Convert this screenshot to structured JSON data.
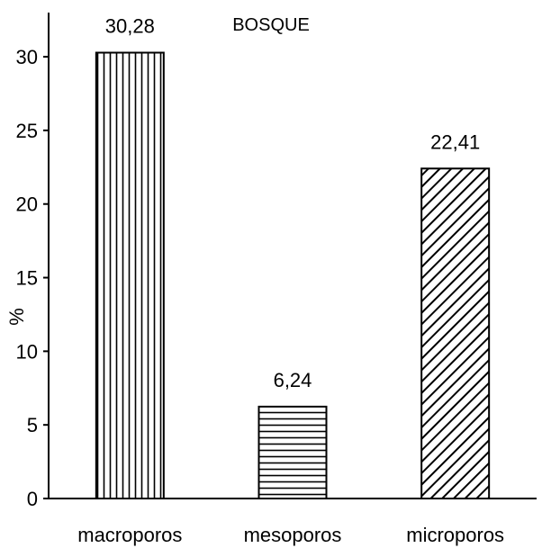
{
  "chart_data": {
    "type": "bar",
    "title": "BOSQUE",
    "xlabel": "",
    "ylabel": "%",
    "categories": [
      "macroporos",
      "mesoporos",
      "microporos"
    ],
    "values": [
      30.28,
      6.24,
      22.41
    ],
    "data_labels": [
      "30,28",
      "6,24",
      "22,41"
    ],
    "yticks": [
      0,
      5,
      10,
      15,
      20,
      25,
      30
    ],
    "ytick_labels": [
      "0",
      "5",
      "10",
      "15",
      "20",
      "25",
      "30"
    ],
    "ylim": [
      0,
      33
    ],
    "grid": false,
    "bar_patterns": [
      "vertical-lines",
      "horizontal-lines",
      "diagonal-lines"
    ]
  }
}
